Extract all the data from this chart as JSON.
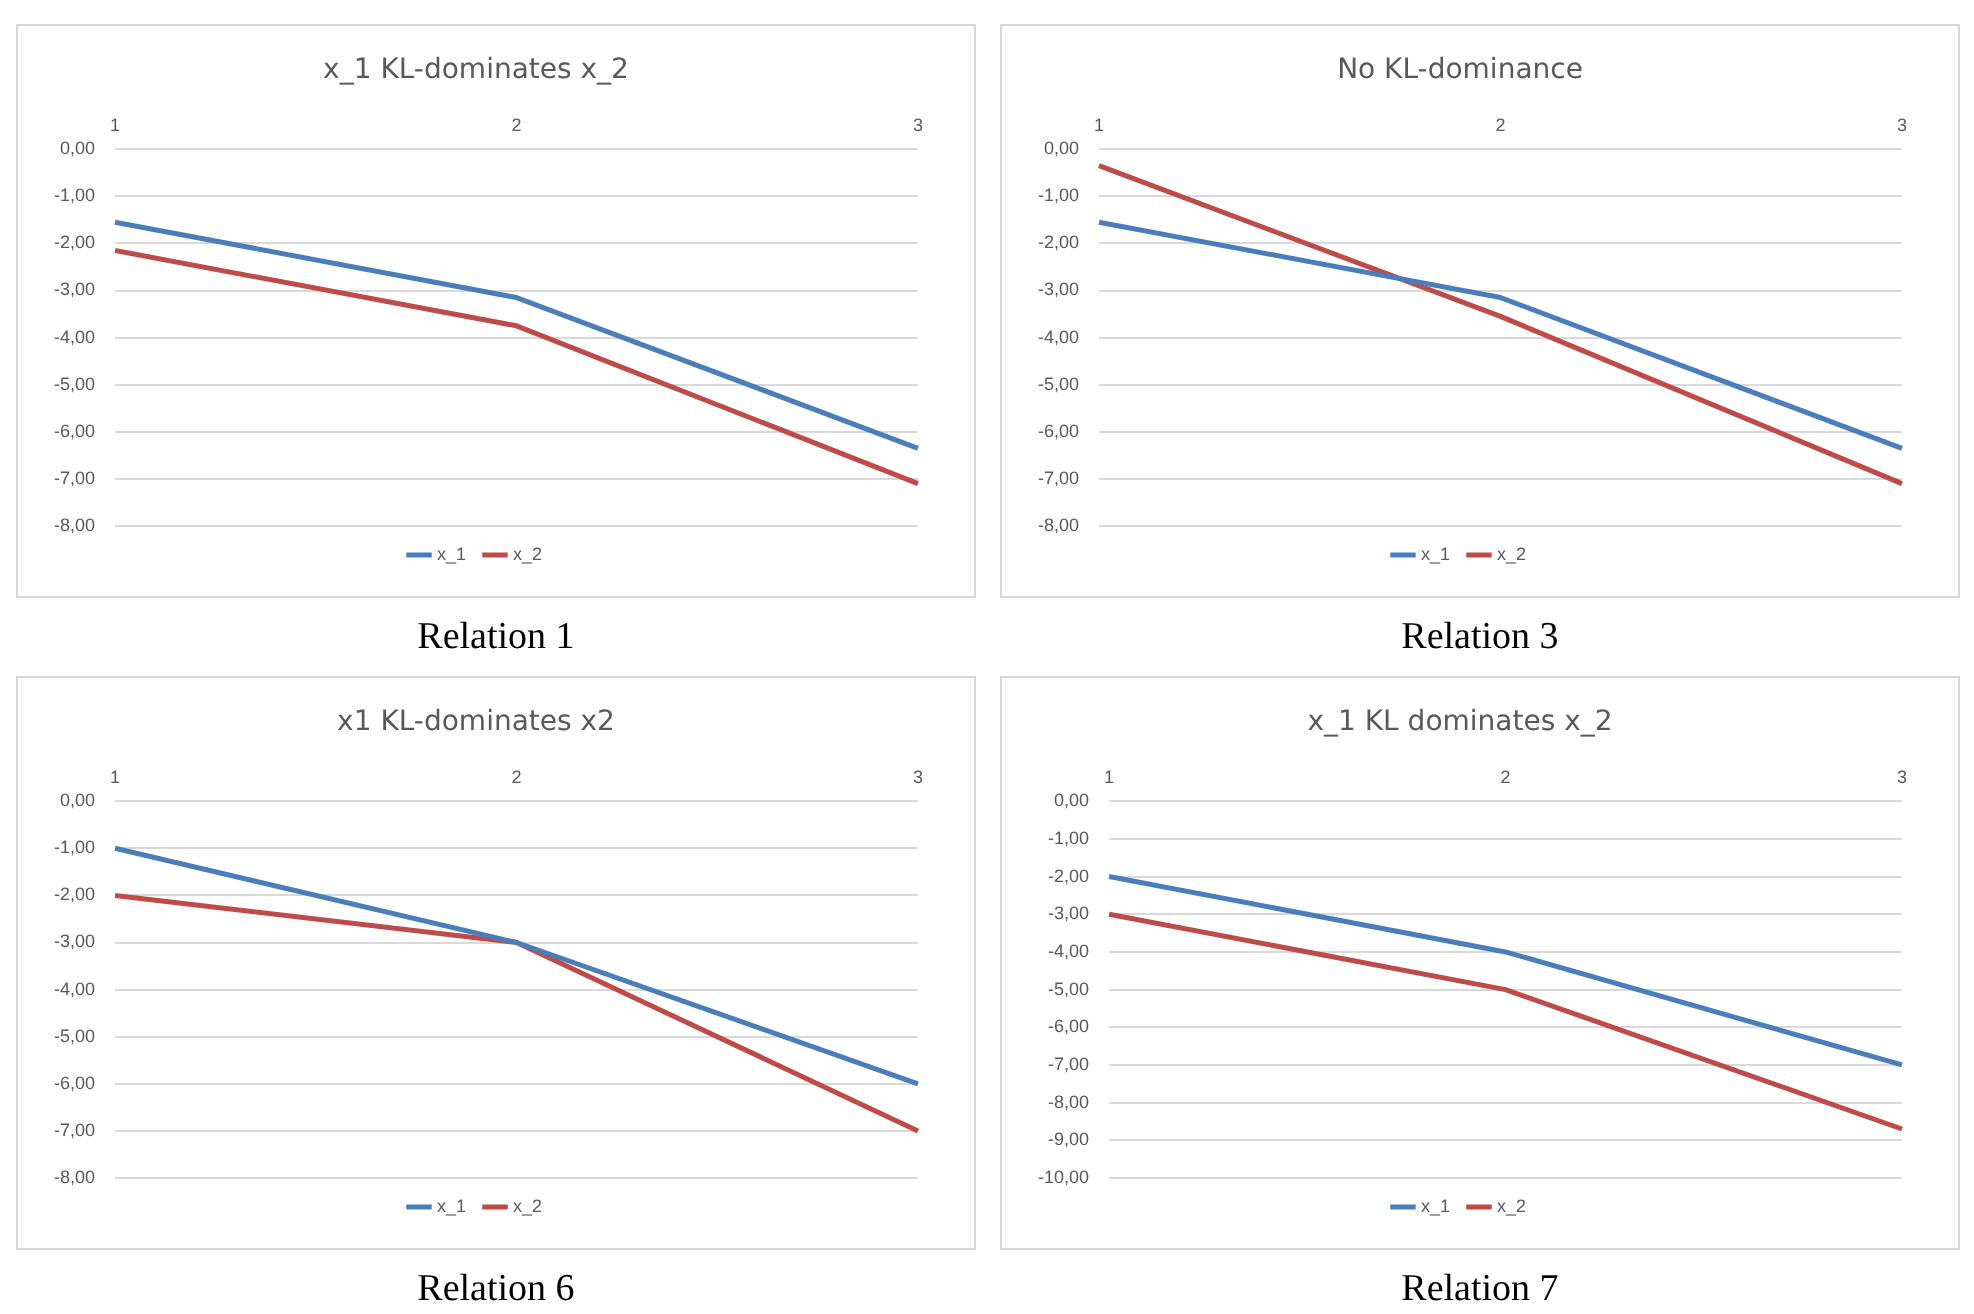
{
  "chart_data": [
    {
      "type": "line",
      "title": "x_1 KL-dominates x_2",
      "categories": [
        "1",
        "2",
        "3"
      ],
      "series": [
        {
          "name": "x_1",
          "color": "#4a7ebb",
          "values": [
            -1.55,
            -3.15,
            -6.35
          ]
        },
        {
          "name": "x_2",
          "color": "#be4b48",
          "values": [
            -2.15,
            -3.75,
            -7.1
          ]
        }
      ],
      "ylim": [
        -8,
        0
      ],
      "yticks": [
        {
          "value": 0,
          "label": "0,00"
        },
        {
          "value": -1,
          "label": "-1,00"
        },
        {
          "value": -2,
          "label": "-2,00"
        },
        {
          "value": -3,
          "label": "-3,00"
        },
        {
          "value": -4,
          "label": "-4,00"
        },
        {
          "value": -5,
          "label": "-5,00"
        },
        {
          "value": -6,
          "label": "-6,00"
        },
        {
          "value": -7,
          "label": "-7,00"
        },
        {
          "value": -8,
          "label": "-8,00"
        }
      ],
      "grid": "y",
      "legend": "bottom",
      "annotations": [
        "Relation 1"
      ]
    },
    {
      "type": "line",
      "title": "No KL-dominance",
      "categories": [
        "1",
        "2",
        "3"
      ],
      "series": [
        {
          "name": "x_1",
          "color": "#4a7ebb",
          "values": [
            -1.55,
            -3.15,
            -6.35
          ]
        },
        {
          "name": "x_2",
          "color": "#be4b48",
          "values": [
            -0.35,
            -3.55,
            -7.1
          ]
        }
      ],
      "ylim": [
        -8,
        0
      ],
      "yticks": [
        {
          "value": 0,
          "label": "0,00"
        },
        {
          "value": -1,
          "label": "-1,00"
        },
        {
          "value": -2,
          "label": "-2,00"
        },
        {
          "value": -3,
          "label": "-3,00"
        },
        {
          "value": -4,
          "label": "-4,00"
        },
        {
          "value": -5,
          "label": "-5,00"
        },
        {
          "value": -6,
          "label": "-6,00"
        },
        {
          "value": -7,
          "label": "-7,00"
        },
        {
          "value": -8,
          "label": "-8,00"
        }
      ],
      "grid": "y",
      "legend": "bottom",
      "annotations": [
        "Relation 3"
      ]
    },
    {
      "type": "line",
      "title": "x1 KL-dominates x2",
      "categories": [
        "1",
        "2",
        "3"
      ],
      "series": [
        {
          "name": "x_1",
          "color": "#4a7ebb",
          "values": [
            -1,
            -3,
            -6
          ]
        },
        {
          "name": "x_2",
          "color": "#be4b48",
          "values": [
            -2,
            -3,
            -7
          ]
        }
      ],
      "ylim": [
        -8,
        0
      ],
      "yticks": [
        {
          "value": 0,
          "label": "0,00"
        },
        {
          "value": -1,
          "label": "-1,00"
        },
        {
          "value": -2,
          "label": "-2,00"
        },
        {
          "value": -3,
          "label": "-3,00"
        },
        {
          "value": -4,
          "label": "-4,00"
        },
        {
          "value": -5,
          "label": "-5,00"
        },
        {
          "value": -6,
          "label": "-6,00"
        },
        {
          "value": -7,
          "label": "-7,00"
        },
        {
          "value": -8,
          "label": "-8,00"
        }
      ],
      "grid": "y",
      "legend": "bottom",
      "annotations": [
        "Relation 6"
      ]
    },
    {
      "type": "line",
      "title": "x_1 KL dominates x_2",
      "categories": [
        "1",
        "2",
        "3"
      ],
      "series": [
        {
          "name": "x_1",
          "color": "#4a7ebb",
          "values": [
            -2,
            -4,
            -7
          ]
        },
        {
          "name": "x_2",
          "color": "#be4b48",
          "values": [
            -3,
            -5,
            -8.7
          ]
        }
      ],
      "ylim": [
        -10,
        0
      ],
      "yticks": [
        {
          "value": 0,
          "label": "0,00"
        },
        {
          "value": -1,
          "label": "-1,00"
        },
        {
          "value": -2,
          "label": "-2,00"
        },
        {
          "value": -3,
          "label": "-3,00"
        },
        {
          "value": -4,
          "label": "-4,00"
        },
        {
          "value": -5,
          "label": "-5,00"
        },
        {
          "value": -6,
          "label": "-6,00"
        },
        {
          "value": -7,
          "label": "-7,00"
        },
        {
          "value": -8,
          "label": "-8,00"
        },
        {
          "value": -9,
          "label": "-9,00"
        },
        {
          "value": -10,
          "label": "-10,00"
        }
      ],
      "grid": "y",
      "legend": "bottom",
      "annotations": [
        "Relation 7"
      ]
    }
  ]
}
